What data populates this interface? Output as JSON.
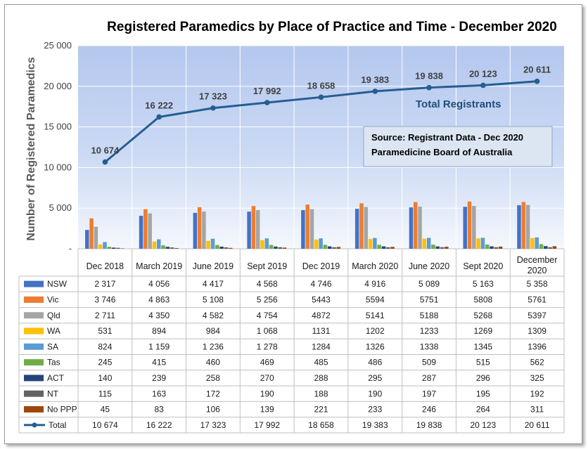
{
  "chart_data": {
    "type": "bar",
    "title": "Registered Paramedics by Place of Practice and Time - December 2020",
    "ylabel": "Number of Registered Paramedics",
    "xlabel": "",
    "ylim": [
      0,
      25000
    ],
    "yticks": [
      "25 000",
      "20 000",
      "15 000",
      "10 000",
      "5 000",
      "-"
    ],
    "categories": [
      [
        "Dec 2018"
      ],
      [
        "March 2019"
      ],
      [
        "June 2019"
      ],
      [
        "Sept 2019"
      ],
      [
        "Dec 2019"
      ],
      [
        "March 2020"
      ],
      [
        "June 2020"
      ],
      [
        "Sept 2020"
      ],
      [
        "December",
        "2020"
      ]
    ],
    "series": [
      {
        "name": "NSW",
        "color": "#4472c4",
        "values": [
          2317,
          4056,
          4417,
          4568,
          4746,
          4916,
          5089,
          5163,
          5358
        ],
        "labels": [
          "2 317",
          "4 056",
          "4 417",
          "4 568",
          "4 746",
          "4 916",
          "5 089",
          "5 163",
          "5 358"
        ]
      },
      {
        "name": "Vic",
        "color": "#ed7d31",
        "values": [
          3746,
          4863,
          5108,
          5256,
          5443,
          5594,
          5751,
          5808,
          5761
        ],
        "labels": [
          "3 746",
          "4 863",
          "5 108",
          "5 256",
          "5443",
          "5594",
          "5751",
          "5808",
          "5761"
        ]
      },
      {
        "name": "Qld",
        "color": "#a5a5a5",
        "values": [
          2711,
          4350,
          4582,
          4754,
          4872,
          5141,
          5188,
          5268,
          5397
        ],
        "labels": [
          "2 711",
          "4 350",
          "4 582",
          "4 754",
          "4872",
          "5141",
          "5188",
          "5268",
          "5397"
        ]
      },
      {
        "name": "WA",
        "color": "#ffc000",
        "values": [
          531,
          894,
          984,
          1068,
          1131,
          1202,
          1233,
          1269,
          1309
        ],
        "labels": [
          "531",
          "894",
          "984",
          "1 068",
          "1131",
          "1202",
          "1233",
          "1269",
          "1309"
        ]
      },
      {
        "name": "SA",
        "color": "#5b9bd5",
        "values": [
          824,
          1159,
          1236,
          1278,
          1284,
          1326,
          1338,
          1345,
          1396
        ],
        "labels": [
          "824",
          "1 159",
          "1 236",
          "1 278",
          "1284",
          "1326",
          "1338",
          "1345",
          "1396"
        ]
      },
      {
        "name": "Tas",
        "color": "#70ad47",
        "values": [
          245,
          415,
          460,
          469,
          485,
          486,
          509,
          515,
          562
        ],
        "labels": [
          "245",
          "415",
          "460",
          "469",
          "485",
          "486",
          "509",
          "515",
          "562"
        ]
      },
      {
        "name": "ACT",
        "color": "#264478",
        "values": [
          140,
          239,
          258,
          270,
          288,
          295,
          287,
          296,
          325
        ],
        "labels": [
          "140",
          "239",
          "258",
          "270",
          "288",
          "295",
          "287",
          "296",
          "325"
        ]
      },
      {
        "name": "NT",
        "color": "#636363",
        "values": [
          115,
          163,
          172,
          190,
          188,
          190,
          197,
          195,
          192
        ],
        "labels": [
          "115",
          "163",
          "172",
          "190",
          "188",
          "190",
          "197",
          "195",
          "192"
        ]
      },
      {
        "name": "No PPP",
        "color": "#9e480e",
        "values": [
          45,
          83,
          106,
          139,
          221,
          233,
          246,
          264,
          311
        ],
        "labels": [
          "45",
          "83",
          "106",
          "139",
          "221",
          "233",
          "246",
          "264",
          "311"
        ]
      }
    ],
    "total": {
      "name": "Total",
      "type": "line",
      "color": "#255e91",
      "values": [
        10674,
        16222,
        17323,
        17992,
        18658,
        19383,
        19838,
        20123,
        20611
      ],
      "labels": [
        "10 674",
        "16 222",
        "17 323",
        "17 992",
        "18 658",
        "19 383",
        "19 838",
        "20 123",
        "20 611"
      ],
      "table_labels": [
        "10 674",
        "16 222",
        "17 323",
        "17 992",
        "18 658",
        "19 383",
        "19 838",
        "20 123",
        "20 611"
      ]
    },
    "annotations": {
      "line_label": "Total Registrants",
      "source_lines": [
        "Source: Registrant Data - Dec 2020",
        "Paramedicine Board of Australia"
      ]
    },
    "grid": true,
    "legend": "data-table"
  }
}
